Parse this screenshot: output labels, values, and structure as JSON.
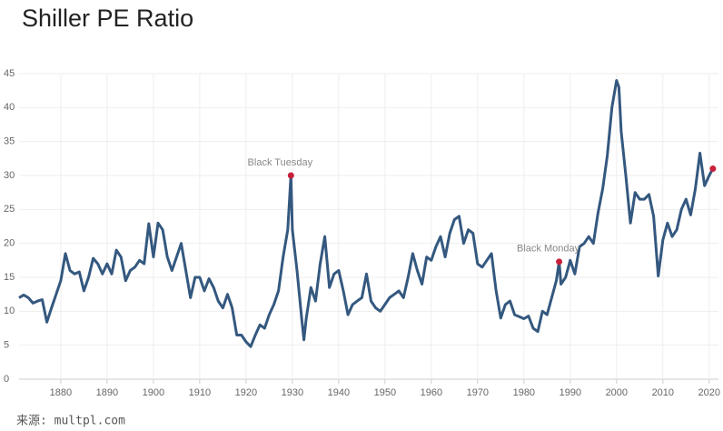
{
  "chart_data": {
    "type": "line",
    "title": "Shiller PE Ratio",
    "source": "来源: multpl.com",
    "color": "#34587f",
    "marker_color": "#c8203a",
    "grid": true,
    "last_point_marker": true,
    "xlim": [
      1871,
      2022
    ],
    "ylim": [
      0,
      45
    ],
    "xticks": [
      1880,
      1890,
      1900,
      1910,
      1920,
      1930,
      1940,
      1950,
      1960,
      1970,
      1980,
      1990,
      2000,
      2010,
      2020
    ],
    "yticks": [
      0,
      5,
      10,
      15,
      20,
      25,
      30,
      35,
      40,
      45
    ],
    "x": [
      1871,
      1872,
      1873,
      1874,
      1875,
      1876,
      1877,
      1878,
      1879,
      1880,
      1881,
      1882,
      1883,
      1884,
      1885,
      1886,
      1887,
      1888,
      1889,
      1890,
      1891,
      1892,
      1893,
      1894,
      1895,
      1896,
      1897,
      1898,
      1899,
      1900,
      1901,
      1902,
      1903,
      1904,
      1905,
      1906,
      1907,
      1908,
      1909,
      1910,
      1911,
      1912,
      1913,
      1914,
      1915,
      1916,
      1917,
      1918,
      1919,
      1920,
      1921,
      1922,
      1923,
      1924,
      1925,
      1926,
      1927,
      1928,
      1929,
      1929.7,
      1930,
      1931,
      1932,
      1932.5,
      1933,
      1934,
      1935,
      1936,
      1937,
      1938,
      1939,
      1940,
      1941,
      1942,
      1943,
      1944,
      1945,
      1946,
      1947,
      1948,
      1949,
      1950,
      1951,
      1952,
      1953,
      1954,
      1955,
      1956,
      1957,
      1958,
      1959,
      1960,
      1961,
      1962,
      1963,
      1964,
      1965,
      1966,
      1967,
      1968,
      1969,
      1970,
      1971,
      1972,
      1973,
      1974,
      1975,
      1976,
      1977,
      1978,
      1979,
      1980,
      1981,
      1982,
      1983,
      1984,
      1985,
      1986,
      1987,
      1987.6,
      1988,
      1989,
      1990,
      1991,
      1992,
      1993,
      1994,
      1995,
      1996,
      1997,
      1998,
      1999,
      2000,
      2000.5,
      2001,
      2002,
      2003,
      2004,
      2005,
      2006,
      2007,
      2008,
      2009,
      2010,
      2011,
      2012,
      2013,
      2014,
      2015,
      2016,
      2017,
      2018,
      2019,
      2020,
      2020.8
    ],
    "values": [
      12,
      12.4,
      12,
      11.2,
      11.5,
      11.7,
      8.4,
      10.5,
      12.5,
      14.5,
      18.5,
      16,
      15.5,
      15.8,
      13,
      15,
      17.8,
      17,
      15.5,
      17,
      15.5,
      19,
      18,
      14.5,
      16,
      16.5,
      17.5,
      17,
      22.9,
      18,
      23,
      22,
      18,
      16,
      18,
      20,
      16,
      12,
      15,
      15,
      13,
      14.8,
      13.5,
      11.5,
      10.5,
      12.5,
      10.5,
      6.5,
      6.5,
      5.5,
      4.8,
      6.5,
      8,
      7.5,
      9.5,
      11,
      13,
      18,
      22,
      30,
      22,
      16,
      9,
      5.8,
      9,
      13.5,
      11.5,
      17,
      21,
      13.5,
      15.5,
      16,
      13,
      9.5,
      11,
      11.5,
      12,
      15.5,
      11.5,
      10.5,
      10,
      11,
      12,
      12.5,
      13,
      12,
      15,
      18.5,
      16,
      14,
      18,
      17.5,
      19.5,
      21,
      18,
      21.5,
      23.5,
      24,
      20,
      22,
      21.5,
      17,
      16.5,
      17.5,
      18.5,
      13,
      9,
      11,
      11.5,
      9.5,
      9.2,
      8.9,
      9.3,
      7.5,
      7,
      10,
      9.5,
      12,
      14.5,
      17.3,
      14,
      15,
      17.5,
      15.5,
      19.5,
      20,
      21,
      20,
      24.5,
      28,
      32.9,
      40,
      44,
      43,
      36.5,
      30,
      23,
      27.5,
      26.5,
      26.5,
      27.2,
      24,
      15.2,
      20.5,
      23,
      21,
      22,
      25,
      26.5,
      24.2,
      28,
      33.3,
      28.5,
      30,
      31
    ],
    "annotations": [
      {
        "text": "Black Tuesday",
        "x": 1929.7,
        "y": 30
      },
      {
        "text": "Black Monday",
        "x": 1987.6,
        "y": 17.3
      }
    ]
  }
}
